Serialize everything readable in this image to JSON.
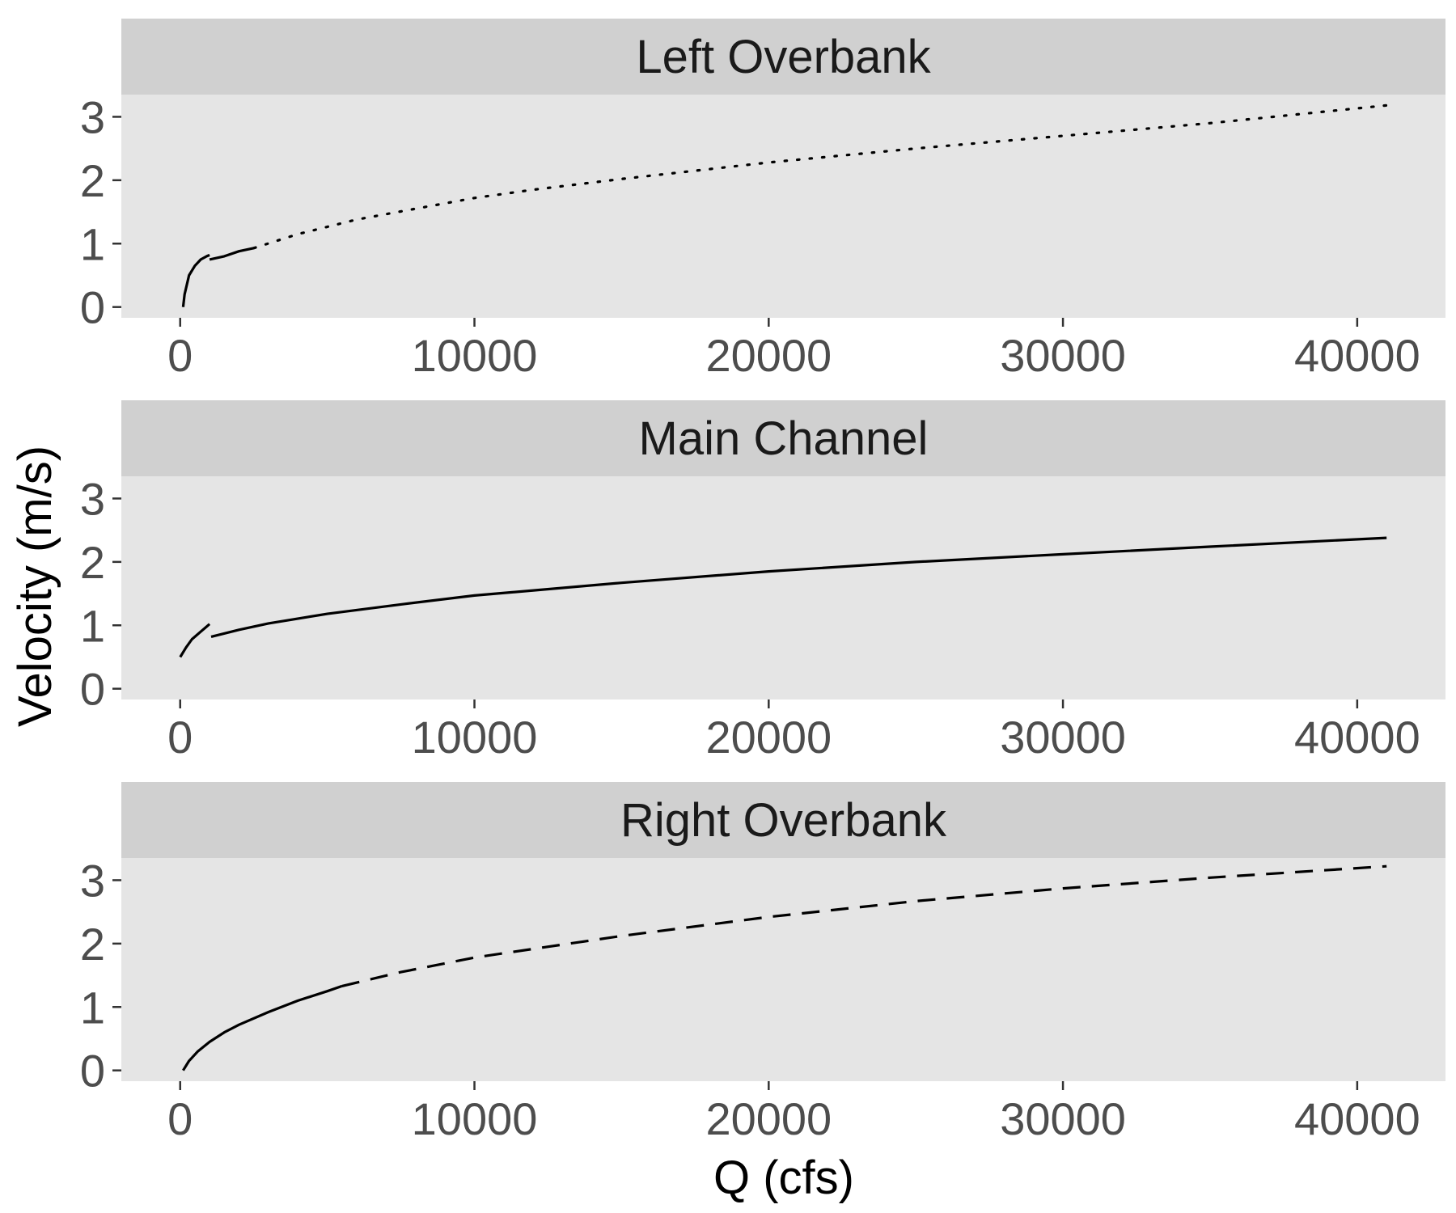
{
  "chart_data": {
    "type": "line",
    "layout": "faceted",
    "xlabel": "Q (cfs)",
    "ylabel": "Velocity (m/s)",
    "xlim": [
      -2000,
      43000
    ],
    "ylim": [
      -0.17,
      3.35
    ],
    "x_ticks": [
      0,
      10000,
      20000,
      30000,
      40000
    ],
    "x_tick_labels": [
      "0",
      "10000",
      "20000",
      "30000",
      "40000"
    ],
    "y_ticks": [
      0,
      1,
      2,
      3
    ],
    "y_tick_labels": [
      "0",
      "1",
      "2",
      "3"
    ],
    "grid": false,
    "colors": {
      "panel_bg": "#e5e5e5",
      "strip_bg": "#d0d0d0",
      "line": "#000000",
      "tick_text": "#4d4d4d"
    },
    "facets": [
      {
        "title": "Left Overbank",
        "segments": [
          {
            "linetype": "solid",
            "x": [
              100,
              150,
              300,
              500,
              700,
              900,
              1000
            ],
            "y": [
              0.0,
              0.2,
              0.5,
              0.65,
              0.75,
              0.8,
              0.82
            ]
          },
          {
            "linetype": "solid",
            "x": [
              1000,
              1500,
              2000,
              2500
            ],
            "y": [
              0.75,
              0.8,
              0.88,
              0.93
            ]
          },
          {
            "linetype": "dotted",
            "x": [
              2500,
              4000,
              6000,
              8000,
              10000,
              12000,
              15000,
              20000,
              25000,
              30000,
              35000,
              41000
            ],
            "y": [
              0.93,
              1.15,
              1.38,
              1.55,
              1.72,
              1.85,
              2.02,
              2.28,
              2.5,
              2.7,
              2.9,
              3.18
            ]
          }
        ]
      },
      {
        "title": "Main Channel",
        "segments": [
          {
            "linetype": "solid",
            "x": [
              0,
              200,
              400,
              700,
              1000
            ],
            "y": [
              0.5,
              0.65,
              0.78,
              0.9,
              1.02
            ]
          },
          {
            "linetype": "solid",
            "x": [
              1050,
              2000,
              3000,
              5000,
              7500,
              10000,
              15000,
              20000,
              25000,
              30000,
              35000,
              41000
            ],
            "y": [
              0.82,
              0.93,
              1.03,
              1.18,
              1.33,
              1.47,
              1.67,
              1.85,
              2.0,
              2.12,
              2.24,
              2.38
            ]
          }
        ]
      },
      {
        "title": "Right Overbank",
        "segments": [
          {
            "linetype": "solid",
            "x": [
              100,
              300,
              600,
              1000,
              1500,
              2000,
              3000,
              4000,
              5000,
              5500
            ],
            "y": [
              0.0,
              0.15,
              0.3,
              0.45,
              0.6,
              0.72,
              0.92,
              1.1,
              1.25,
              1.33
            ]
          },
          {
            "linetype": "dashed",
            "x": [
              5500,
              7500,
              10000,
              15000,
              20000,
              25000,
              30000,
              35000,
              41000
            ],
            "y": [
              1.33,
              1.55,
              1.78,
              2.12,
              2.42,
              2.67,
              2.87,
              3.04,
              3.22
            ]
          }
        ]
      }
    ]
  }
}
